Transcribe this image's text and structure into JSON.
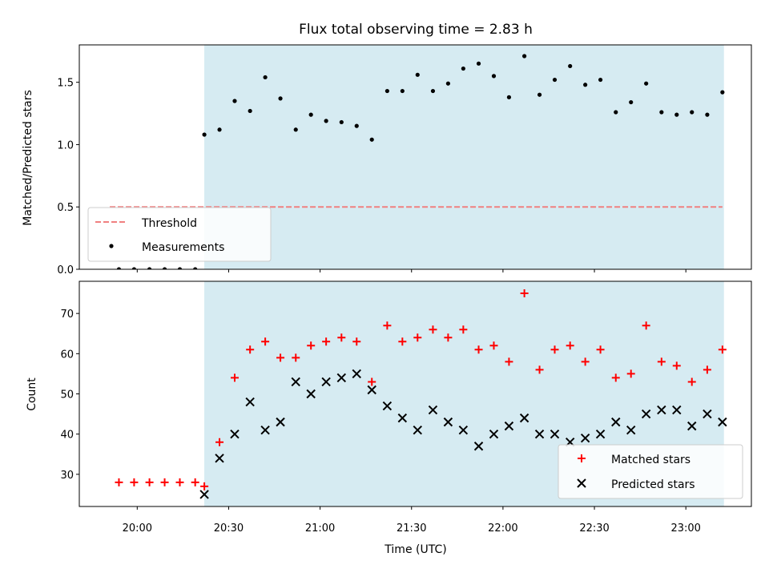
{
  "chart_data": {
    "title": "Flux total observing time = 2.83 h",
    "xlabel": "Time (UTC)",
    "x_ticks": [
      "20:00",
      "20:30",
      "21:00",
      "21:30",
      "22:00",
      "22:30",
      "23:00"
    ],
    "x_tick_hours": [
      20.0,
      20.5,
      21.0,
      21.5,
      22.0,
      22.5,
      23.0
    ],
    "xlim": [
      19.6833,
      23.3583
    ],
    "shaded_span": [
      20.3667,
      23.2083
    ],
    "top": {
      "type": "scatter",
      "ylabel": "Matched/Predicted stars",
      "ylim": [
        0,
        1.8
      ],
      "y_ticks": [
        0.0,
        0.5,
        1.0,
        1.5
      ],
      "y_tick_labels": [
        "0.0",
        "0.5",
        "1.0",
        "1.5"
      ],
      "threshold": {
        "name": "Threshold",
        "value": 0.5,
        "x_range": [
          19.85,
          23.2
        ],
        "color": "#f08080"
      },
      "series": [
        {
          "name": "Measurements",
          "color": "#000000",
          "x": [
            19.9,
            19.983,
            20.067,
            20.15,
            20.233,
            20.317,
            20.367,
            20.45,
            20.533,
            20.617,
            20.7,
            20.783,
            20.867,
            20.95,
            21.033,
            21.117,
            21.2,
            21.283,
            21.367,
            21.45,
            21.533,
            21.617,
            21.7,
            21.783,
            21.867,
            21.95,
            22.033,
            22.117,
            22.2,
            22.283,
            22.367,
            22.45,
            22.533,
            22.617,
            22.7,
            22.783,
            22.867,
            22.95,
            23.033,
            23.117,
            23.2
          ],
          "y": [
            0.0,
            0.0,
            0.0,
            0.0,
            0.0,
            0.0,
            1.08,
            1.12,
            1.35,
            1.27,
            1.54,
            1.37,
            1.12,
            1.24,
            1.19,
            1.18,
            1.15,
            1.04,
            1.43,
            1.43,
            1.56,
            1.43,
            1.49,
            1.61,
            1.65,
            1.55,
            1.38,
            1.71,
            1.4,
            1.52,
            1.63,
            1.48,
            1.52,
            1.26,
            1.34,
            1.49,
            1.26,
            1.24,
            1.26,
            1.24,
            1.42
          ]
        }
      ],
      "legend": {
        "placement": "lower-left",
        "entries": [
          "Threshold",
          "Measurements"
        ]
      }
    },
    "bottom": {
      "type": "scatter",
      "ylabel": "Count",
      "ylim": [
        22,
        78
      ],
      "y_ticks": [
        30,
        40,
        50,
        60,
        70
      ],
      "y_tick_labels": [
        "30",
        "40",
        "50",
        "60",
        "70"
      ],
      "series": [
        {
          "name": "Matched stars",
          "marker": "plus",
          "color": "#ff0000",
          "x": [
            19.9,
            19.983,
            20.067,
            20.15,
            20.233,
            20.317,
            20.367,
            20.45,
            20.533,
            20.617,
            20.7,
            20.783,
            20.867,
            20.95,
            21.033,
            21.117,
            21.2,
            21.283,
            21.367,
            21.45,
            21.533,
            21.617,
            21.7,
            21.783,
            21.867,
            21.95,
            22.033,
            22.117,
            22.2,
            22.283,
            22.367,
            22.45,
            22.533,
            22.617,
            22.7,
            22.783,
            22.867,
            22.95,
            23.033,
            23.117,
            23.2
          ],
          "y": [
            28,
            28,
            28,
            28,
            28,
            28,
            27,
            38,
            54,
            61,
            63,
            59,
            59,
            62,
            63,
            64,
            63,
            53,
            67,
            63,
            64,
            66,
            64,
            66,
            61,
            62,
            58,
            75,
            56,
            61,
            62,
            58,
            61,
            54,
            55,
            67,
            58,
            57,
            53,
            56,
            61
          ]
        },
        {
          "name": "Predicted stars",
          "marker": "x",
          "color": "#000000",
          "x": [
            20.367,
            20.45,
            20.533,
            20.617,
            20.7,
            20.783,
            20.867,
            20.95,
            21.033,
            21.117,
            21.2,
            21.283,
            21.367,
            21.45,
            21.533,
            21.617,
            21.7,
            21.783,
            21.867,
            21.95,
            22.033,
            22.117,
            22.2,
            22.283,
            22.367,
            22.45,
            22.533,
            22.617,
            22.7,
            22.783,
            22.867,
            22.95,
            23.033,
            23.117,
            23.2
          ],
          "y": [
            25,
            34,
            40,
            48,
            41,
            43,
            53,
            50,
            53,
            54,
            55,
            51,
            47,
            44,
            41,
            46,
            43,
            41,
            37,
            40,
            42,
            44,
            40,
            40,
            38,
            39,
            40,
            43,
            41,
            45,
            46,
            46,
            42,
            45,
            43
          ]
        }
      ],
      "legend": {
        "placement": "lower-right",
        "entries": [
          "Matched stars",
          "Predicted stars"
        ]
      }
    },
    "shade_color": "#add8e6"
  }
}
